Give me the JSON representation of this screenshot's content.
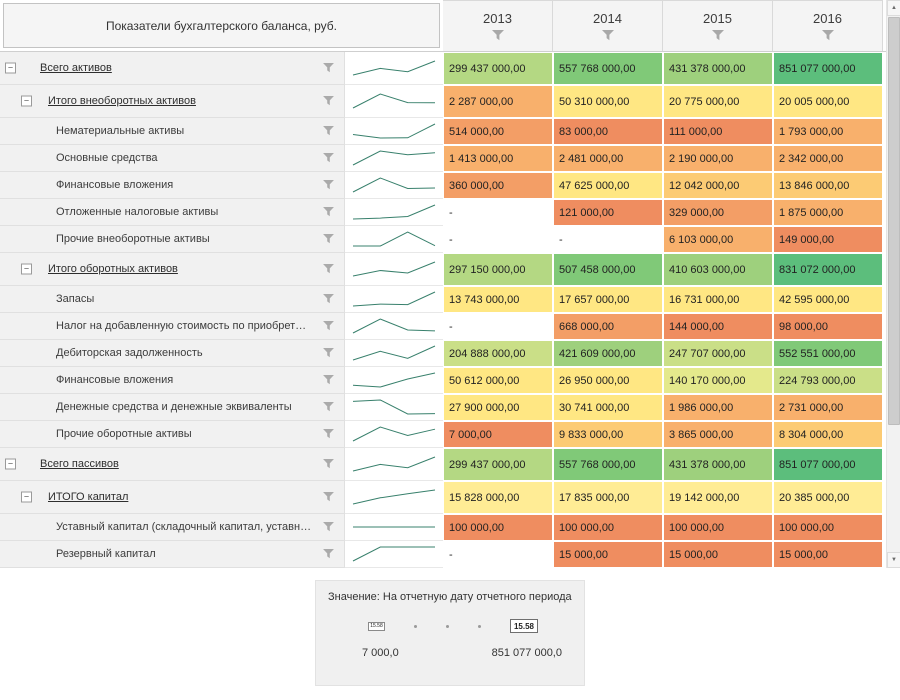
{
  "header": {
    "title": "Показатели бухгалтерского баланса, руб.",
    "years": [
      "2013",
      "2014",
      "2015",
      "2016"
    ]
  },
  "sparkline_color": "#38806c",
  "rows": [
    {
      "label": "Всего активов",
      "level": 0,
      "expander": true,
      "underline": true,
      "values": [
        "299 437 000,00",
        "557 768 000,00",
        "431 378 000,00",
        "851 077 000,00"
      ],
      "colors": [
        "#b4d883",
        "#80c978",
        "#9ed07d",
        "#5cbe7c"
      ]
    },
    {
      "label": "Итого внеоборотных активов",
      "level": 1,
      "expander": true,
      "underline": true,
      "values": [
        "2 287 000,00",
        "50 310 000,00",
        "20 775 000,00",
        "20 005 000,00"
      ],
      "colors": [
        "#f8b06c",
        "#ffe783",
        "#ffe783",
        "#ffe783"
      ]
    },
    {
      "label": "Нематериальные активы",
      "level": 2,
      "expander": false,
      "underline": false,
      "values": [
        "514 000,00",
        "83 000,00",
        "111 000,00",
        "1 793 000,00"
      ],
      "colors": [
        "#f39e66",
        "#ef8d60",
        "#ef8d60",
        "#f8b06c"
      ]
    },
    {
      "label": "Основные средства",
      "level": 2,
      "expander": false,
      "underline": false,
      "values": [
        "1 413 000,00",
        "2 481 000,00",
        "2 190 000,00",
        "2 342 000,00"
      ],
      "colors": [
        "#f8b06c",
        "#f8b06c",
        "#f8b06c",
        "#f8b06c"
      ]
    },
    {
      "label": "Финансовые вложения",
      "level": 2,
      "expander": false,
      "underline": false,
      "values": [
        "360 000,00",
        "47 625 000,00",
        "12 042 000,00",
        "13 846 000,00"
      ],
      "colors": [
        "#f39e66",
        "#ffe783",
        "#fccb74",
        "#fccb74"
      ]
    },
    {
      "label": "Отложенные налоговые активы",
      "level": 2,
      "expander": false,
      "underline": false,
      "values": [
        "-",
        "121 000,00",
        "329 000,00",
        "1 875 000,00"
      ],
      "colors": [
        "#ffffff",
        "#ef8d60",
        "#f39e66",
        "#f8b06c"
      ]
    },
    {
      "label": "Прочие внеоборотные активы",
      "level": 2,
      "expander": false,
      "underline": false,
      "values": [
        "-",
        "-",
        "6 103 000,00",
        "149 000,00"
      ],
      "colors": [
        "#ffffff",
        "#ffffff",
        "#f8b06c",
        "#ef8d60"
      ]
    },
    {
      "label": "Итого оборотных активов",
      "level": 1,
      "expander": true,
      "underline": true,
      "values": [
        "297 150 000,00",
        "507 458 000,00",
        "410 603 000,00",
        "831 072 000,00"
      ],
      "colors": [
        "#b4d883",
        "#80c978",
        "#9ed07d",
        "#5cbe7c"
      ]
    },
    {
      "label": "Запасы",
      "level": 2,
      "expander": false,
      "underline": false,
      "values": [
        "13 743 000,00",
        "17 657 000,00",
        "16 731 000,00",
        "42 595 000,00"
      ],
      "colors": [
        "#ffe783",
        "#ffe783",
        "#ffe783",
        "#ffe783"
      ]
    },
    {
      "label": "Налог на добавленную стоимость по приобретен...",
      "level": 2,
      "expander": false,
      "underline": false,
      "values": [
        "-",
        "668 000,00",
        "144 000,00",
        "98 000,00"
      ],
      "colors": [
        "#ffffff",
        "#f39e66",
        "#ef8d60",
        "#ef8d60"
      ]
    },
    {
      "label": "Дебиторская задолженность",
      "level": 2,
      "expander": false,
      "underline": false,
      "values": [
        "204 888 000,00",
        "421 609 000,00",
        "247 707 000,00",
        "552 551 000,00"
      ],
      "colors": [
        "#cadf87",
        "#9ed07d",
        "#cadf87",
        "#80c978"
      ]
    },
    {
      "label": "Финансовые вложения",
      "level": 2,
      "expander": false,
      "underline": false,
      "values": [
        "50 612 000,00",
        "26 950 000,00",
        "140 170 000,00",
        "224 793 000,00"
      ],
      "colors": [
        "#ffe783",
        "#ffe783",
        "#e4e98c",
        "#cadf87"
      ]
    },
    {
      "label": "Денежные средства и денежные эквиваленты",
      "level": 2,
      "expander": false,
      "underline": false,
      "values": [
        "27 900 000,00",
        "30 741 000,00",
        "1 986 000,00",
        "2 731 000,00"
      ],
      "colors": [
        "#ffe783",
        "#ffe783",
        "#f8b06c",
        "#f8b06c"
      ]
    },
    {
      "label": "Прочие оборотные активы",
      "level": 2,
      "expander": false,
      "underline": false,
      "values": [
        "7 000,00",
        "9 833 000,00",
        "3 865 000,00",
        "8 304 000,00"
      ],
      "colors": [
        "#ef8d60",
        "#fccb74",
        "#f8b06c",
        "#fccb74"
      ]
    },
    {
      "label": "Всего пассивов",
      "level": 0,
      "expander": true,
      "underline": true,
      "values": [
        "299 437 000,00",
        "557 768 000,00",
        "431 378 000,00",
        "851 077 000,00"
      ],
      "colors": [
        "#b4d883",
        "#80c978",
        "#9ed07d",
        "#5cbe7c"
      ]
    },
    {
      "label": "ИТОГО капитал",
      "level": 1,
      "expander": true,
      "underline": true,
      "values": [
        "15 828 000,00",
        "17 835 000,00",
        "19 142 000,00",
        "20 385 000,00"
      ],
      "colors": [
        "#ffec95",
        "#ffec95",
        "#ffec95",
        "#ffec95"
      ]
    },
    {
      "label": "Уставный капитал (складочный капитал, уставны...",
      "level": 2,
      "expander": false,
      "underline": false,
      "values": [
        "100 000,00",
        "100 000,00",
        "100 000,00",
        "100 000,00"
      ],
      "colors": [
        "#ef8d60",
        "#ef8d60",
        "#ef8d60",
        "#ef8d60"
      ]
    },
    {
      "label": "Резервный капитал",
      "level": 2,
      "expander": false,
      "underline": false,
      "values": [
        "-",
        "15 000,00",
        "15 000,00",
        "15 000,00"
      ],
      "colors": [
        "#ffffff",
        "#ef8d60",
        "#ef8d60",
        "#ef8d60"
      ]
    }
  ],
  "legend": {
    "title": "Значение: На отчетную дату отчетного периода",
    "handle_min": "15.58",
    "handle_max": "15.58",
    "min": "7 000,0",
    "max": "851 077 000,0"
  },
  "scrollbar": {
    "up": "▲",
    "down": "▼"
  }
}
